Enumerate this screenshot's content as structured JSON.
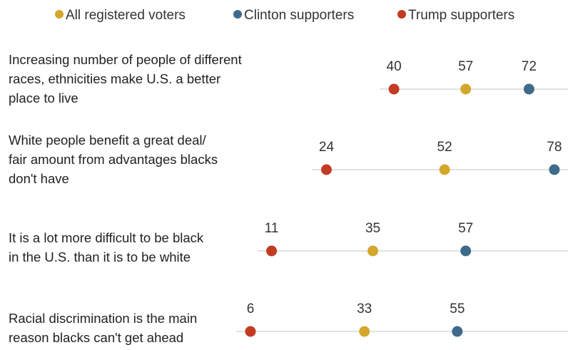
{
  "legend": {
    "items": [
      {
        "label": "All registered voters",
        "color": "#d4a72c"
      },
      {
        "label": "Clinton supporters",
        "color": "#3f6a8a"
      },
      {
        "label": "Trump supporters",
        "color": "#c23b22"
      }
    ]
  },
  "chart_data": {
    "type": "dot",
    "xlim": [
      0,
      100
    ],
    "grid": false,
    "legend_position": "top",
    "series": [
      {
        "name": "All registered voters",
        "color": "#d4a72c",
        "values": [
          57,
          52,
          35,
          33
        ]
      },
      {
        "name": "Clinton supporters",
        "color": "#3f6a8a",
        "values": [
          72,
          78,
          57,
          55
        ]
      },
      {
        "name": "Trump supporters",
        "color": "#c23b22",
        "values": [
          40,
          24,
          11,
          6
        ]
      }
    ],
    "categories": [
      {
        "lines": [
          "Increasing number of people of different",
          "races, ethnicities make U.S. a better",
          "place to live"
        ]
      },
      {
        "lines": [
          "White people benefit a great deal/",
          "fair amount from advantages blacks",
          "don't have"
        ]
      },
      {
        "lines": [
          "It is a lot more difficult to be black",
          "in the U.S. than it is to be white"
        ]
      },
      {
        "lines": [
          "Racial discrimination is the main",
          "reason blacks can't get ahead"
        ]
      }
    ]
  }
}
